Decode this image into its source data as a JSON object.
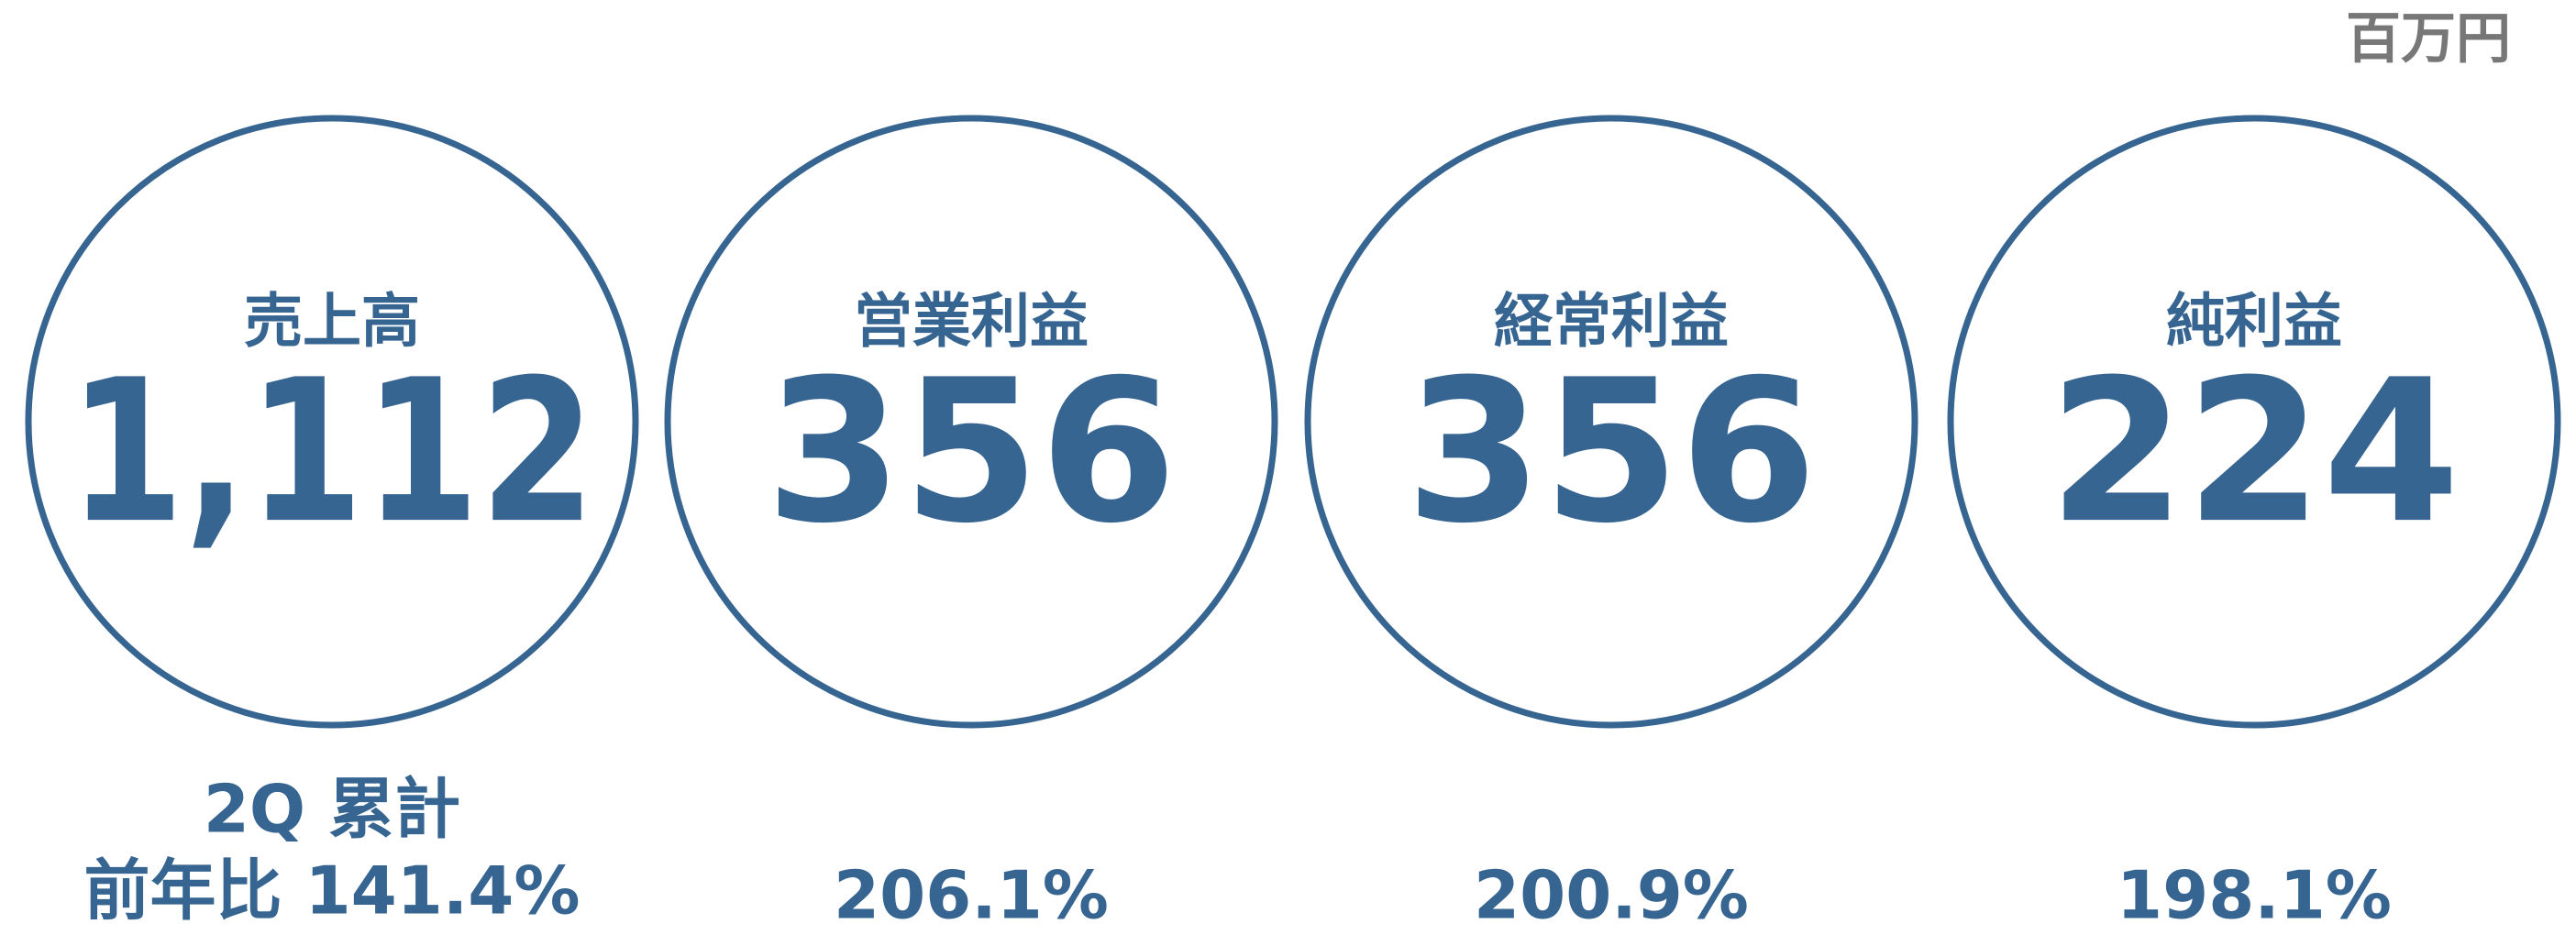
{
  "unit": "百万円",
  "items": [
    {
      "label": "売上高",
      "value": "1,112",
      "note": "2Q 累計",
      "comparison": "前年比 141.4%"
    },
    {
      "label": "営業利益",
      "value": "356",
      "comparison": "206.1%"
    },
    {
      "label": "経常利益",
      "value": "356",
      "comparison": "200.9%"
    },
    {
      "label": "純利益",
      "value": "224",
      "comparison": "198.1%"
    }
  ]
}
